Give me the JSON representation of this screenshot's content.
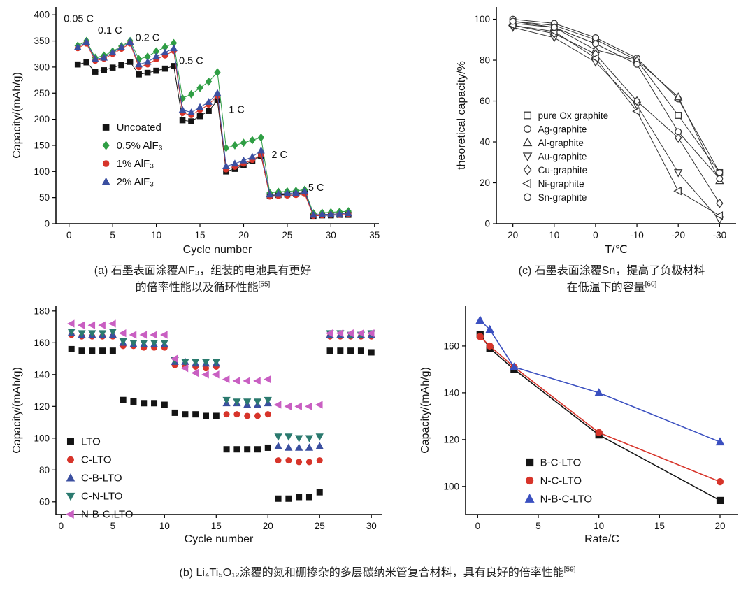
{
  "captions": {
    "a": {
      "line1": "(a) 石墨表面涂覆AlF₃，组装的电池具有更好",
      "line2": "的倍率性能以及循环性能",
      "ref": "[55]"
    },
    "c": {
      "line1": "(c) 石墨表面涂覆Sn，提高了负极材料",
      "line2": "在低温下的容量",
      "ref": "[60]"
    },
    "b": {
      "text": "(b) Li₄Ti₅O₁₂涂覆的氮和硼掺杂的多层碳纳米管复合材料，具有良好的倍率性能",
      "ref": "[59]"
    }
  },
  "chart_data": [
    {
      "id": "panel-a",
      "type": "scatter",
      "xlabel": "Cycle number",
      "ylabel": "Capacity/(mAh/g)",
      "xlim": [
        -1.5,
        35.5
      ],
      "ylim": [
        0,
        415
      ],
      "xticks": [
        0,
        5,
        10,
        15,
        20,
        25,
        30,
        35
      ],
      "yticks": [
        0,
        50,
        100,
        150,
        200,
        250,
        300,
        350,
        400
      ],
      "annotations": [
        {
          "text": "0.05 C",
          "x": -0.6,
          "y": 386
        },
        {
          "text": "0.1 C",
          "x": 3.3,
          "y": 364
        },
        {
          "text": "0.2 C",
          "x": 7.6,
          "y": 350
        },
        {
          "text": "0.5 C",
          "x": 12.6,
          "y": 306
        },
        {
          "text": "1 C",
          "x": 18.3,
          "y": 212
        },
        {
          "text": "2 C",
          "x": 23.2,
          "y": 126
        },
        {
          "text": "5 C",
          "x": 27.4,
          "y": 63
        }
      ],
      "legend": {
        "fx": 0.155,
        "fy": 0.555,
        "dy": 26,
        "fs": 15
      },
      "series": [
        {
          "name": "Uncoated",
          "marker": "square",
          "color": "#141414",
          "filled": true,
          "line": true,
          "lw": 1,
          "size": 3.8,
          "x": [
            1,
            2,
            3,
            4,
            5,
            6,
            7,
            8,
            9,
            10,
            11,
            12,
            13,
            14,
            15,
            16,
            17,
            18,
            19,
            20,
            21,
            22,
            23,
            24,
            25,
            26,
            27,
            28,
            29,
            30,
            31,
            32
          ],
          "y": [
            305,
            309,
            291,
            294,
            299,
            304,
            310,
            286,
            289,
            293,
            297,
            302,
            198,
            196,
            206,
            216,
            236,
            100,
            105,
            112,
            120,
            130,
            54,
            55,
            56,
            57,
            60,
            15,
            16,
            16,
            17,
            17
          ]
        },
        {
          "name": "0.5% AlF₃",
          "marker": "diamond",
          "color": "#2f9e44",
          "filled": true,
          "line": true,
          "lw": 1,
          "size": 3.8,
          "x": [
            1,
            2,
            3,
            4,
            5,
            6,
            7,
            8,
            9,
            10,
            11,
            12,
            13,
            14,
            15,
            16,
            17,
            18,
            19,
            20,
            21,
            22,
            23,
            24,
            25,
            26,
            27,
            28,
            29,
            30,
            31,
            32
          ],
          "y": [
            341,
            350,
            318,
            322,
            330,
            340,
            350,
            315,
            320,
            330,
            338,
            346,
            240,
            248,
            260,
            272,
            290,
            145,
            150,
            155,
            160,
            165,
            59,
            61,
            62,
            63,
            65,
            20,
            21,
            22,
            23,
            24
          ]
        },
        {
          "name": "1% AlF₃",
          "marker": "circle",
          "color": "#d7342a",
          "filled": true,
          "line": true,
          "lw": 1,
          "size": 3.8,
          "x": [
            1,
            2,
            3,
            4,
            5,
            6,
            7,
            8,
            9,
            10,
            11,
            12,
            13,
            14,
            15,
            16,
            17,
            18,
            19,
            20,
            21,
            22,
            23,
            24,
            25,
            26,
            27,
            28,
            29,
            30,
            31,
            32
          ],
          "y": [
            336,
            345,
            312,
            316,
            325,
            335,
            345,
            300,
            305,
            315,
            322,
            331,
            212,
            208,
            218,
            228,
            245,
            104,
            109,
            115,
            122,
            132,
            52,
            53,
            54,
            55,
            57,
            15,
            16,
            17,
            17,
            18
          ]
        },
        {
          "name": "2% AlF₃",
          "marker": "triangle-up",
          "color": "#3b4fa0",
          "filled": true,
          "line": true,
          "lw": 1,
          "size": 3.8,
          "x": [
            1,
            2,
            3,
            4,
            5,
            6,
            7,
            8,
            9,
            10,
            11,
            12,
            13,
            14,
            15,
            16,
            17,
            18,
            19,
            20,
            21,
            22,
            23,
            24,
            25,
            26,
            27,
            28,
            29,
            30,
            31,
            32
          ],
          "y": [
            338,
            348,
            315,
            318,
            328,
            338,
            348,
            305,
            310,
            320,
            328,
            336,
            218,
            213,
            223,
            233,
            250,
            110,
            115,
            121,
            128,
            140,
            56,
            57,
            58,
            59,
            62,
            17,
            18,
            18,
            19,
            20
          ]
        }
      ]
    },
    {
      "id": "panel-c",
      "type": "line",
      "xlabel": "T/℃",
      "ylabel": "theoretical capacity/%",
      "xlim": [
        24,
        -34
      ],
      "ylim": [
        0,
        106
      ],
      "xticks": [
        20,
        10,
        0,
        -10,
        -20,
        -30
      ],
      "xtick_labels": [
        "20",
        "10",
        "0",
        "-10",
        "-20",
        "-30"
      ],
      "yticks": [
        0,
        20,
        40,
        60,
        80,
        100
      ],
      "annotations": [],
      "legend": {
        "fx": 0.13,
        "fy": 0.5,
        "dy": 19.5,
        "fs": 13.5
      },
      "series": [
        {
          "name": "pure Ox graphite",
          "marker": "square",
          "color": "#333333",
          "filled": false,
          "line": true,
          "lw": 1,
          "size": 4.3,
          "x": [
            20,
            10,
            0,
            -10,
            -20,
            -30
          ],
          "y": [
            99,
            97,
            90,
            80,
            53,
            25
          ]
        },
        {
          "name": "Ag-graphite",
          "marker": "circle",
          "color": "#333333",
          "filled": false,
          "line": true,
          "lw": 1,
          "size": 4.3,
          "x": [
            20,
            10,
            0,
            -10,
            -20,
            -30
          ],
          "y": [
            100,
            98,
            91,
            81,
            61,
            25
          ]
        },
        {
          "name": "Al-graphite",
          "marker": "triangle-up",
          "color": "#333333",
          "filled": false,
          "line": true,
          "lw": 1,
          "size": 4.3,
          "x": [
            20,
            10,
            0,
            -10,
            -20,
            -30
          ],
          "y": [
            98,
            96,
            85,
            80,
            62,
            21
          ]
        },
        {
          "name": "Au-graphite",
          "marker": "triangle-down",
          "color": "#333333",
          "filled": false,
          "line": true,
          "lw": 1,
          "size": 4.3,
          "x": [
            20,
            10,
            0,
            -10,
            -20,
            -30
          ],
          "y": [
            96,
            91,
            79,
            58,
            25,
            2
          ]
        },
        {
          "name": "Cu-graphite",
          "marker": "diamond",
          "color": "#333333",
          "filled": false,
          "line": true,
          "lw": 1,
          "size": 4.3,
          "x": [
            20,
            10,
            0,
            -10,
            -20,
            -30
          ],
          "y": [
            97,
            93,
            83,
            60,
            42,
            10
          ]
        },
        {
          "name": "Ni-graphite",
          "marker": "triangle-left",
          "color": "#333333",
          "filled": false,
          "line": true,
          "lw": 1,
          "size": 4.3,
          "x": [
            20,
            10,
            0,
            -10,
            -20,
            -30
          ],
          "y": [
            97,
            94,
            81,
            55,
            16,
            4
          ]
        },
        {
          "name": "Sn-graphite",
          "marker": "circle",
          "color": "#333333",
          "filled": false,
          "line": true,
          "lw": 1,
          "size": 4.3,
          "x": [
            20,
            10,
            0,
            -10,
            -20,
            -30
          ],
          "y": [
            99,
            96,
            88,
            78,
            45,
            22
          ]
        }
      ]
    },
    {
      "id": "panel-b",
      "type": "scatter",
      "xlabel": "Cycle number",
      "ylabel": "Capacity/(mAh/g)",
      "xlim": [
        -0.5,
        31
      ],
      "ylim": [
        52,
        183
      ],
      "xticks": [
        0,
        5,
        10,
        15,
        20,
        25,
        30
      ],
      "yticks": [
        60,
        80,
        100,
        120,
        140,
        160,
        180
      ],
      "annotations": [],
      "legend": {
        "fx": 0.045,
        "fy": 0.65,
        "dy": 26,
        "fs": 15
      },
      "series": [
        {
          "name": "LTO",
          "marker": "square",
          "color": "#141414",
          "filled": true,
          "line": false,
          "size": 4,
          "x": [
            1,
            2,
            3,
            4,
            5,
            6,
            7,
            8,
            9,
            10,
            11,
            12,
            13,
            14,
            15,
            16,
            17,
            18,
            19,
            20,
            21,
            22,
            23,
            24,
            25,
            26,
            27,
            28,
            29,
            30
          ],
          "y": [
            156,
            155,
            155,
            155,
            155,
            124,
            123,
            122,
            122,
            121,
            116,
            115,
            115,
            114,
            114,
            93,
            93,
            93,
            93,
            94,
            62,
            62,
            63,
            63,
            66,
            155,
            155,
            155,
            155,
            154
          ]
        },
        {
          "name": "C-LTO",
          "marker": "circle",
          "color": "#d7342a",
          "filled": true,
          "line": false,
          "size": 4,
          "x": [
            1,
            2,
            3,
            4,
            5,
            6,
            7,
            8,
            9,
            10,
            11,
            12,
            13,
            14,
            15,
            16,
            17,
            18,
            19,
            20,
            21,
            22,
            23,
            24,
            25,
            26,
            27,
            28,
            29,
            30
          ],
          "y": [
            165,
            164,
            164,
            164,
            164,
            158,
            158,
            157,
            157,
            157,
            146,
            145,
            145,
            144,
            145,
            115,
            115,
            114,
            114,
            115,
            86,
            86,
            85,
            85,
            86,
            164,
            164,
            164,
            164,
            164
          ]
        },
        {
          "name": "C-B-LTO",
          "marker": "triangle-up",
          "color": "#3b4fa0",
          "filled": true,
          "line": false,
          "size": 4,
          "x": [
            1,
            2,
            3,
            4,
            5,
            6,
            7,
            8,
            9,
            10,
            11,
            12,
            13,
            14,
            15,
            16,
            17,
            18,
            19,
            20,
            21,
            22,
            23,
            24,
            25,
            26,
            27,
            28,
            29,
            30
          ],
          "y": [
            166,
            165,
            165,
            165,
            165,
            160,
            159,
            159,
            159,
            159,
            148,
            148,
            147,
            147,
            147,
            122,
            122,
            121,
            121,
            122,
            95,
            94,
            94,
            94,
            95,
            165,
            165,
            165,
            165,
            165
          ]
        },
        {
          "name": "C-N-LTO",
          "marker": "triangle-down",
          "color": "#2b7a6f",
          "filled": true,
          "line": false,
          "size": 4,
          "x": [
            1,
            2,
            3,
            4,
            5,
            6,
            7,
            8,
            9,
            10,
            11,
            12,
            13,
            14,
            15,
            16,
            17,
            18,
            19,
            20,
            21,
            22,
            23,
            24,
            25,
            26,
            27,
            28,
            29,
            30
          ],
          "y": [
            167,
            166,
            166,
            166,
            167,
            161,
            160,
            160,
            160,
            160,
            149,
            148,
            148,
            148,
            148,
            124,
            123,
            123,
            123,
            124,
            101,
            101,
            100,
            100,
            101,
            166,
            166,
            165,
            165,
            166
          ]
        },
        {
          "name": "N-B-C-LTO",
          "marker": "triangle-left",
          "color": "#c95fc2",
          "filled": true,
          "line": false,
          "size": 4,
          "x": [
            1,
            2,
            3,
            4,
            5,
            6,
            7,
            8,
            9,
            10,
            11,
            12,
            13,
            14,
            15,
            16,
            17,
            18,
            19,
            20,
            21,
            22,
            23,
            24,
            25,
            26,
            27,
            28,
            29,
            30
          ],
          "y": [
            172,
            171,
            171,
            171,
            172,
            166,
            165,
            165,
            165,
            165,
            150,
            144,
            141,
            140,
            140,
            137,
            136,
            136,
            136,
            137,
            121,
            120,
            120,
            120,
            121,
            166,
            166,
            166,
            166,
            166
          ]
        }
      ]
    },
    {
      "id": "panel-d",
      "type": "line",
      "xlabel": "Rate/C",
      "ylabel": "Capacity/(mAh/g)",
      "xlim": [
        -1,
        21.5
      ],
      "ylim": [
        88,
        177
      ],
      "xticks": [
        0,
        5,
        10,
        15,
        20
      ],
      "yticks": [
        100,
        120,
        140,
        160
      ],
      "annotations": [],
      "legend": {
        "fx": 0.235,
        "fy": 0.75,
        "dy": 26,
        "fs": 15
      },
      "series": [
        {
          "name": "B-C-LTO",
          "marker": "square",
          "color": "#141414",
          "filled": true,
          "line": true,
          "lw": 1.6,
          "size": 4.6,
          "x": [
            0.2,
            1,
            3,
            10,
            20
          ],
          "y": [
            165,
            159,
            150,
            122,
            94
          ]
        },
        {
          "name": "N-C-LTO",
          "marker": "circle",
          "color": "#d7342a",
          "filled": true,
          "line": true,
          "lw": 1.6,
          "size": 4.6,
          "x": [
            0.2,
            1,
            3,
            10,
            20
          ],
          "y": [
            164,
            160,
            151,
            123,
            102
          ]
        },
        {
          "name": "N-B-C-LTO",
          "marker": "triangle-up",
          "color": "#3b50c0",
          "filled": true,
          "line": true,
          "lw": 1.6,
          "size": 4.6,
          "x": [
            0.2,
            1,
            3,
            10,
            20
          ],
          "y": [
            171,
            167,
            151,
            140,
            119
          ]
        }
      ]
    }
  ]
}
